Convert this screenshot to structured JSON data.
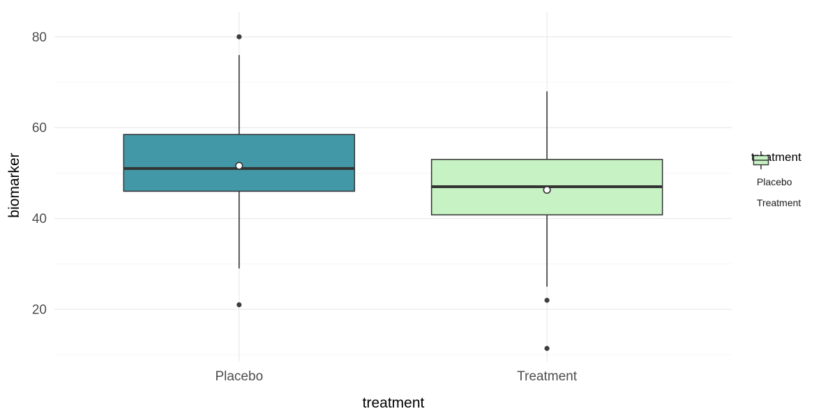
{
  "chart_data": {
    "type": "boxplot",
    "xlabel": "treatment",
    "ylabel": "biomarker",
    "categories": [
      "Placebo",
      "Treatment"
    ],
    "ylim": [
      8.5,
      85.5
    ],
    "yticks": [
      20,
      40,
      60,
      80
    ],
    "yticks_minor": [
      10,
      30,
      50,
      70
    ],
    "grid": "major-and-minor, white panel with light gray lines",
    "legend_position": "right",
    "series": [
      {
        "name": "Placebo",
        "color": "#4398A8",
        "whisker_low": 29,
        "q1": 46,
        "median": 51,
        "q3": 58.5,
        "whisker_high": 76,
        "mean": 51.6,
        "outliers": [
          21,
          80
        ]
      },
      {
        "name": "Treatment",
        "color": "#C7F2C3",
        "whisker_low": 25,
        "q1": 40.8,
        "median": 47,
        "q3": 53,
        "whisker_high": 68,
        "mean": 46.3,
        "outliers": [
          11.4,
          22
        ]
      }
    ]
  },
  "legend": {
    "title": "treatment",
    "items": [
      {
        "label": "Placebo",
        "color": "#4398A8"
      },
      {
        "label": "Treatment",
        "color": "#C7F2C3"
      }
    ]
  },
  "style": {
    "box_border": "#333333",
    "median_color": "#333333",
    "outlier_color": "#3D3D3D",
    "mean_fill": "#FFFFFF",
    "mean_border": "#333333",
    "grid_major": "#E9E9E9",
    "grid_minor": "#F5F5F5",
    "axis_text": "#4D4D4D",
    "title_color": "#000000",
    "background": "#FFFFFF"
  }
}
